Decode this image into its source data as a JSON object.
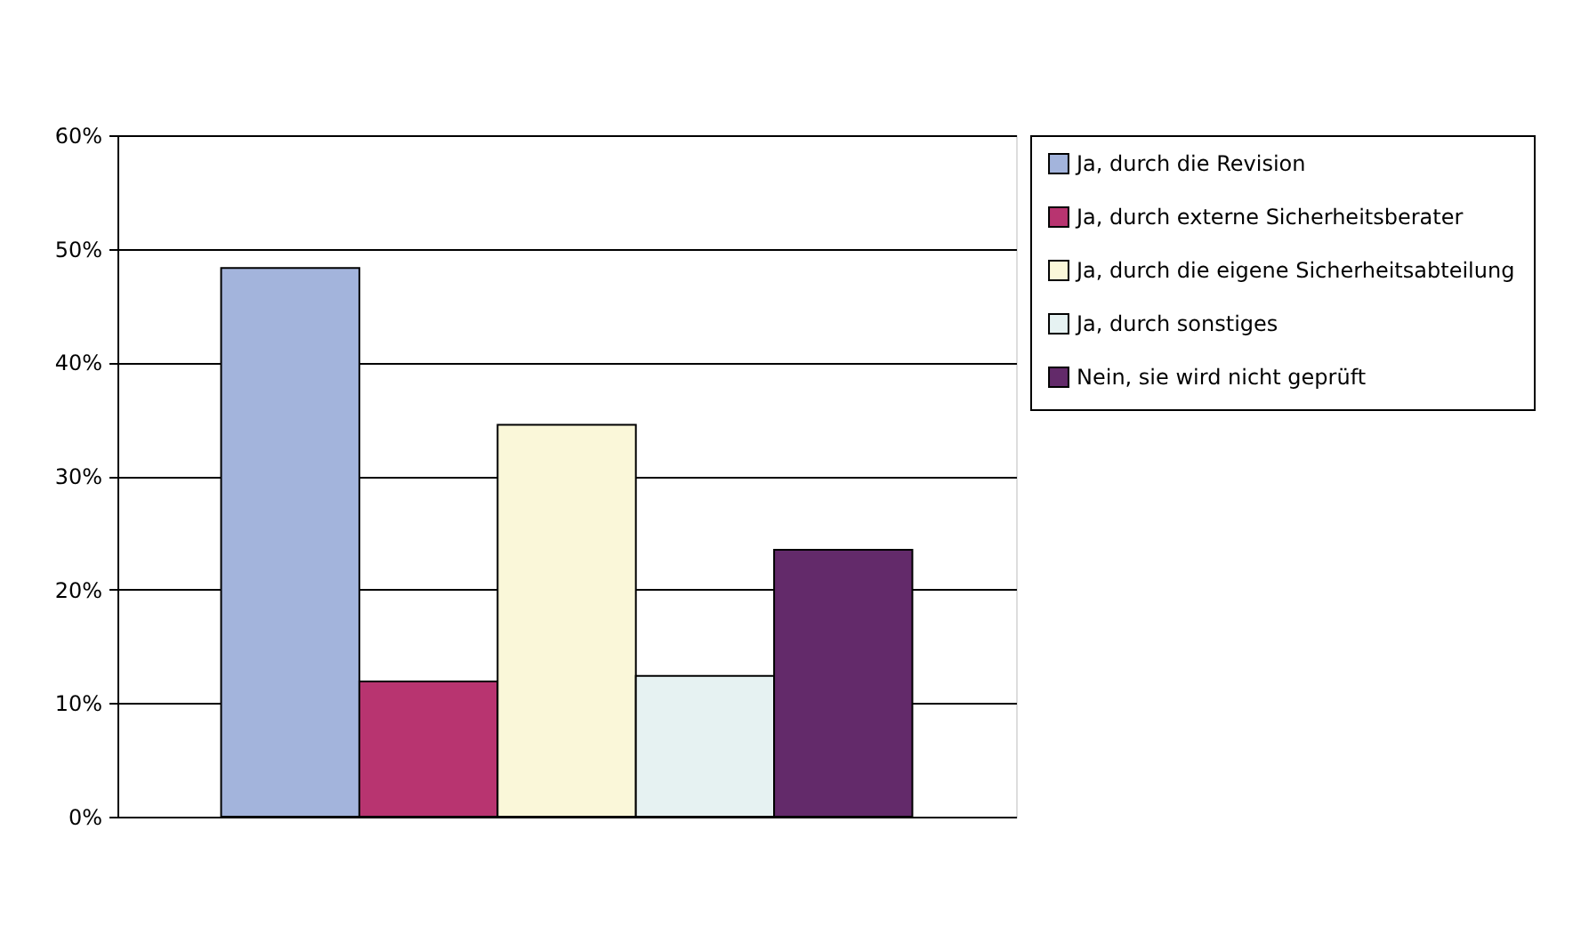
{
  "chart_data": {
    "type": "bar",
    "categories": [
      null
    ],
    "series": [
      {
        "name": "Ja, durch die Revision",
        "color": "#a3b4dc",
        "values": [
          48.3
        ]
      },
      {
        "name": "Ja, durch externe Sicherheitsberater",
        "color": "#b83470",
        "values": [
          11.9
        ]
      },
      {
        "name": "Ja, durch die eigene Sicherheitsabteilung",
        "color": "#faf7d9",
        "values": [
          34.5
        ]
      },
      {
        "name": "Ja, durch sonstiges",
        "color": "#e6f2f2",
        "values": [
          12.4
        ]
      },
      {
        "name": "Nein, sie wird nicht geprüft",
        "color": "#632a6a",
        "values": [
          23.5
        ]
      }
    ],
    "ylim": [
      0,
      60
    ],
    "yticks": [
      {
        "value": 0,
        "label": "0%"
      },
      {
        "value": 10,
        "label": "10%"
      },
      {
        "value": 20,
        "label": "20%"
      },
      {
        "value": 30,
        "label": "30%"
      },
      {
        "value": 40,
        "label": "40%"
      },
      {
        "value": 50,
        "label": "50%"
      },
      {
        "value": 60,
        "label": "60%"
      }
    ],
    "grid": "y",
    "legend": "right",
    "tick_labels": "y"
  }
}
